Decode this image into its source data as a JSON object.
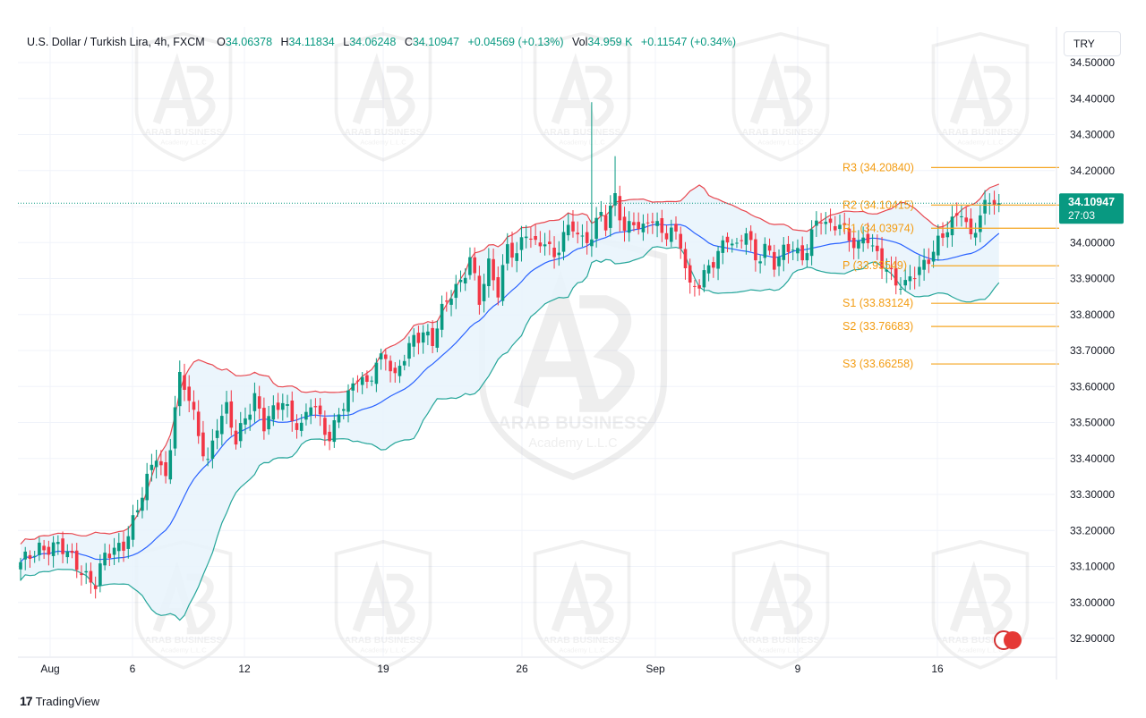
{
  "header": {
    "symbol": "U.S. Dollar / Turkish Lira, 4h, FXCM",
    "o_label": "O",
    "o_value": "34.06378",
    "h_label": "H",
    "h_value": "34.11834",
    "l_label": "L",
    "l_value": "34.06248",
    "c_label": "C",
    "c_value": "34.10947",
    "change": "+0.04569 (+0.13%)",
    "vol_label": "Vol",
    "vol_value": "34.959 K",
    "vol_change": "+0.11547 (+0.34%)"
  },
  "currency_button": "TRY",
  "watermark": {
    "name": "ARAB BUSINESS",
    "sub": "Academy L.L.C"
  },
  "brand": "TradingView",
  "colors": {
    "up": "#089981",
    "down": "#f23645",
    "band_upper": "#e8474f",
    "band_lower": "#26a69a",
    "basis": "#2962ff",
    "band_fill": "#e8f3fc",
    "level": "#f5a623",
    "level_text": "#f39c12",
    "price_badge": "#089981"
  },
  "chart_data": {
    "type": "candlestick",
    "y_axis": {
      "min": 32.86,
      "max": 34.53,
      "ticks": [
        "34.50000",
        "34.40000",
        "34.30000",
        "34.20000",
        "34.10000",
        "34.00000",
        "33.90000",
        "33.80000",
        "33.70000",
        "33.60000",
        "33.50000",
        "33.40000",
        "33.30000",
        "33.20000",
        "33.10000",
        "33.00000",
        "32.90000"
      ]
    },
    "x_axis": {
      "labels": [
        "Aug",
        "6",
        "12",
        "19",
        "26",
        "Sep",
        "9",
        "16"
      ]
    },
    "last_price": "34.10947",
    "countdown": "27:03",
    "levels": [
      {
        "label": "R3 (34.20840)",
        "value": 34.2084
      },
      {
        "label": "R2 (34.10415)",
        "value": 34.10415
      },
      {
        "label": "R1 (34.03974)",
        "value": 34.03974
      },
      {
        "label": "P (33.93549)",
        "value": 33.93549
      },
      {
        "label": "S1 (33.83124)",
        "value": 33.83124
      },
      {
        "label": "S2 (33.76683)",
        "value": 33.76683
      },
      {
        "label": "S3 (33.66258)",
        "value": 33.66258
      }
    ],
    "close_path": [
      [
        0,
        33.1
      ],
      [
        4,
        33.16
      ],
      [
        8,
        33.15
      ],
      [
        12,
        33.11
      ],
      [
        16,
        33.05
      ],
      [
        18,
        33.12
      ],
      [
        22,
        33.17
      ],
      [
        25,
        33.26
      ],
      [
        27,
        33.33
      ],
      [
        29,
        33.41
      ],
      [
        31,
        33.35
      ],
      [
        33,
        33.55
      ],
      [
        34,
        33.62
      ],
      [
        36,
        33.56
      ],
      [
        38,
        33.46
      ],
      [
        40,
        33.4
      ],
      [
        42,
        33.5
      ],
      [
        44,
        33.53
      ],
      [
        46,
        33.44
      ],
      [
        48,
        33.52
      ],
      [
        50,
        33.58
      ],
      [
        52,
        33.49
      ],
      [
        54,
        33.52
      ],
      [
        56,
        33.56
      ],
      [
        58,
        33.52
      ],
      [
        60,
        33.49
      ],
      [
        62,
        33.55
      ],
      [
        64,
        33.5
      ],
      [
        66,
        33.46
      ],
      [
        68,
        33.54
      ],
      [
        70,
        33.57
      ],
      [
        72,
        33.62
      ],
      [
        74,
        33.6
      ],
      [
        76,
        33.68
      ],
      [
        78,
        33.69
      ],
      [
        80,
        33.61
      ],
      [
        82,
        33.68
      ],
      [
        84,
        33.74
      ],
      [
        86,
        33.76
      ],
      [
        88,
        33.72
      ],
      [
        90,
        33.8
      ],
      [
        92,
        33.86
      ],
      [
        94,
        33.9
      ],
      [
        96,
        33.96
      ],
      [
        98,
        33.83
      ],
      [
        100,
        33.93
      ],
      [
        102,
        33.87
      ],
      [
        104,
        34.0
      ],
      [
        106,
        33.96
      ],
      [
        108,
        34.02
      ],
      [
        110,
        33.99
      ],
      [
        112,
        34.02
      ],
      [
        114,
        33.96
      ],
      [
        116,
        34.01
      ],
      [
        118,
        34.04
      ],
      [
        120,
        34.01
      ],
      [
        122,
        34.03
      ],
      [
        124,
        34.08
      ],
      [
        125,
        34.04
      ],
      [
        127,
        34.12
      ],
      [
        129,
        34.04
      ],
      [
        131,
        34.07
      ],
      [
        133,
        34.03
      ],
      [
        135,
        34.06
      ],
      [
        137,
        34.02
      ],
      [
        139,
        34.05
      ],
      [
        141,
        34.0
      ],
      [
        143,
        33.86
      ],
      [
        145,
        33.88
      ],
      [
        147,
        33.94
      ],
      [
        149,
        33.98
      ],
      [
        151,
        34.01
      ],
      [
        153,
        33.97
      ],
      [
        155,
        34.04
      ],
      [
        157,
        33.96
      ],
      [
        159,
        33.99
      ],
      [
        161,
        33.93
      ],
      [
        163,
        33.97
      ],
      [
        165,
        34.0
      ],
      [
        167,
        33.96
      ],
      [
        169,
        34.02
      ],
      [
        171,
        34.06
      ],
      [
        173,
        34.04
      ],
      [
        175,
        34.07
      ],
      [
        177,
        34.01
      ],
      [
        179,
        33.98
      ],
      [
        181,
        34.01
      ],
      [
        183,
        33.97
      ],
      [
        185,
        33.94
      ],
      [
        187,
        33.88
      ],
      [
        189,
        33.87
      ],
      [
        191,
        33.92
      ],
      [
        193,
        33.95
      ],
      [
        195,
        33.98
      ],
      [
        197,
        34.01
      ],
      [
        199,
        34.05
      ],
      [
        201,
        34.1
      ],
      [
        203,
        34.02
      ],
      [
        205,
        34.07
      ],
      [
        207,
        34.10947
      ]
    ],
    "spikes": [
      [
        122,
        34.39,
        34.0
      ],
      [
        127,
        34.24,
        34.05
      ]
    ],
    "bollinger": {
      "period": 20,
      "upper_labels": "upper band",
      "note": ""
    }
  }
}
